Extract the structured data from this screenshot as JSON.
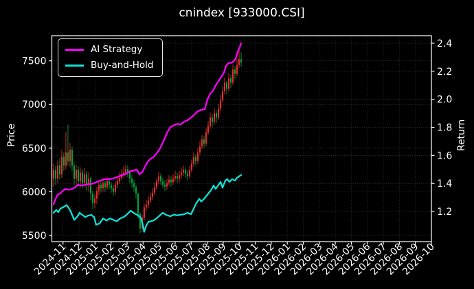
{
  "title": "cnindex [933000.CSI]",
  "axes": {
    "price_label": "Price",
    "return_label": "Return"
  },
  "legend": {
    "items": [
      {
        "label": "AI Strategy",
        "color": "#ff00ff"
      },
      {
        "label": "Buy-and-Hold",
        "color": "#0de2d8"
      }
    ]
  },
  "chart_data": {
    "type": "candlestick+line",
    "title": "cnindex [933000.CSI]",
    "grid": true,
    "legend_position": "upper-left",
    "colors": {
      "up": "#ea2c2c",
      "down": "#00a43c",
      "background": "#000000",
      "grid": "#3a3a3a",
      "text": "#ffffff",
      "spine": "#ffffff"
    },
    "x_axis": {
      "unit": "months since 2024-11-01",
      "lim": [
        -0.695,
        23.0
      ],
      "tick_labels": [
        "2024-11",
        "2024-12",
        "2025-01",
        "2025-02",
        "2025-03",
        "2025-04",
        "2025-05",
        "2025-06",
        "2025-07",
        "2025-08",
        "2025-09",
        "2025-10",
        "2025-11",
        "2025-12",
        "2026-01",
        "2026-02",
        "2026-03",
        "2026-04",
        "2026-05",
        "2026-06",
        "2026-07",
        "2026-08",
        "2026-09",
        "2026-10"
      ]
    },
    "price_axis": {
      "label": "Price",
      "ticks": [
        5500,
        6000,
        6500,
        7000,
        7500
      ],
      "lim": [
        5429,
        7788
      ]
    },
    "return_axis": {
      "label": "Return",
      "ticks": [
        1.2,
        1.4,
        1.6,
        1.8,
        2.0,
        2.2,
        2.4
      ],
      "lim": [
        0.9845,
        2.4539
      ]
    },
    "candles": {
      "t_start": -0.59,
      "t_step": 0.1287,
      "format": "[open,high,low,close]",
      "ohlc": [
        [
          6150,
          6320,
          6060,
          6250
        ],
        [
          6250,
          6300,
          6080,
          6150
        ],
        [
          6150,
          6360,
          6100,
          6300
        ],
        [
          6300,
          6380,
          6140,
          6200
        ],
        [
          6200,
          6480,
          6160,
          6400
        ],
        [
          6400,
          6450,
          6240,
          6300
        ],
        [
          6300,
          6690,
          6260,
          6450
        ],
        [
          6450,
          6770,
          6300,
          6350
        ],
        [
          6350,
          6560,
          6280,
          6480
        ],
        [
          6480,
          6520,
          6240,
          6300
        ],
        [
          6300,
          6340,
          6080,
          6150
        ],
        [
          6150,
          6310,
          6090,
          6250
        ],
        [
          6250,
          6290,
          6060,
          6120
        ],
        [
          6120,
          6280,
          6050,
          6220
        ],
        [
          6220,
          6260,
          6040,
          6100
        ],
        [
          6100,
          6270,
          6050,
          6200
        ],
        [
          6200,
          6240,
          6010,
          6080
        ],
        [
          6080,
          6220,
          6000,
          6150
        ],
        [
          6150,
          6170,
          5900,
          5980
        ],
        [
          5980,
          6010,
          5800,
          5870
        ],
        [
          5870,
          5970,
          5810,
          5920
        ],
        [
          5920,
          6060,
          5860,
          6010
        ],
        [
          6010,
          6130,
          5960,
          6080
        ],
        [
          6080,
          6120,
          5990,
          6040
        ],
        [
          6040,
          6150,
          6000,
          6100
        ],
        [
          6100,
          6130,
          6000,
          6050
        ],
        [
          6050,
          6170,
          6020,
          6120
        ],
        [
          6120,
          6160,
          6030,
          6080
        ],
        [
          6080,
          6110,
          5990,
          6040
        ],
        [
          6040,
          6080,
          5950,
          6000
        ],
        [
          6000,
          6120,
          5970,
          6080
        ],
        [
          6080,
          6180,
          6040,
          6120
        ],
        [
          6120,
          6220,
          6090,
          6160
        ],
        [
          6160,
          6260,
          6130,
          6200
        ],
        [
          6200,
          6290,
          6160,
          6220
        ],
        [
          6220,
          6310,
          6180,
          6260
        ],
        [
          6260,
          6300,
          6170,
          6220
        ],
        [
          6220,
          6250,
          6100,
          6150
        ],
        [
          6150,
          6190,
          6050,
          6100
        ],
        [
          6100,
          6140,
          6000,
          6050
        ],
        [
          6050,
          6080,
          5920,
          5980
        ],
        [
          5980,
          5990,
          5690,
          5750
        ],
        [
          5750,
          5760,
          5520,
          5580
        ],
        [
          5580,
          5740,
          5540,
          5700
        ],
        [
          5700,
          5860,
          5670,
          5820
        ],
        [
          5820,
          5910,
          5780,
          5850
        ],
        [
          5850,
          5950,
          5810,
          5900
        ],
        [
          5900,
          5990,
          5870,
          5940
        ],
        [
          5940,
          6040,
          5900,
          5990
        ],
        [
          5990,
          6100,
          5960,
          6050
        ],
        [
          6050,
          6160,
          6020,
          6120
        ],
        [
          6120,
          6230,
          6090,
          6180
        ],
        [
          6180,
          6210,
          6080,
          6120
        ],
        [
          6120,
          6160,
          6040,
          6080
        ],
        [
          6080,
          6130,
          6010,
          6060
        ],
        [
          6060,
          6150,
          6020,
          6100
        ],
        [
          6100,
          6190,
          6070,
          6140
        ],
        [
          6140,
          6180,
          6060,
          6110
        ],
        [
          6110,
          6200,
          6080,
          6150
        ],
        [
          6150,
          6240,
          6120,
          6180
        ],
        [
          6180,
          6220,
          6100,
          6150
        ],
        [
          6150,
          6240,
          6110,
          6190
        ],
        [
          6190,
          6280,
          6150,
          6220
        ],
        [
          6220,
          6300,
          6180,
          6250
        ],
        [
          6250,
          6280,
          6160,
          6210
        ],
        [
          6210,
          6250,
          6130,
          6180
        ],
        [
          6180,
          6300,
          6150,
          6250
        ],
        [
          6250,
          6370,
          6220,
          6320
        ],
        [
          6320,
          6450,
          6290,
          6400
        ],
        [
          6400,
          6430,
          6300,
          6350
        ],
        [
          6350,
          6500,
          6320,
          6450
        ],
        [
          6450,
          6580,
          6420,
          6520
        ],
        [
          6520,
          6650,
          6490,
          6600
        ],
        [
          6600,
          6640,
          6500,
          6550
        ],
        [
          6550,
          6730,
          6520,
          6680
        ],
        [
          6680,
          6810,
          6650,
          6750
        ],
        [
          6750,
          6910,
          6720,
          6850
        ],
        [
          6850,
          6890,
          6740,
          6800
        ],
        [
          6800,
          6960,
          6770,
          6900
        ],
        [
          6900,
          6930,
          6790,
          6850
        ],
        [
          6850,
          7010,
          6820,
          6950
        ],
        [
          6950,
          7110,
          6920,
          7050
        ],
        [
          7050,
          7210,
          7020,
          7150
        ],
        [
          7150,
          7310,
          7120,
          7250
        ],
        [
          7250,
          7270,
          7120,
          7180
        ],
        [
          7180,
          7360,
          7150,
          7300
        ],
        [
          7300,
          7340,
          7190,
          7250
        ],
        [
          7250,
          7460,
          7220,
          7400
        ],
        [
          7400,
          7440,
          7290,
          7350
        ],
        [
          7350,
          7520,
          7320,
          7450
        ],
        [
          7450,
          7640,
          7420,
          7520
        ],
        [
          7520,
          7600,
          7430,
          7480
        ]
      ]
    },
    "series": [
      {
        "name": "AI Strategy",
        "axis": "return",
        "color": "#ff00ff",
        "points": [
          [
            -0.59,
            1.25
          ],
          [
            -0.46,
            1.29
          ],
          [
            -0.33,
            1.32
          ],
          [
            -0.16,
            1.33
          ],
          [
            -0.03,
            1.345
          ],
          [
            0.14,
            1.36
          ],
          [
            0.36,
            1.355
          ],
          [
            0.57,
            1.36
          ],
          [
            0.78,
            1.375
          ],
          [
            0.91,
            1.39
          ],
          [
            1.13,
            1.385
          ],
          [
            1.39,
            1.39
          ],
          [
            1.64,
            1.395
          ],
          [
            1.9,
            1.4
          ],
          [
            2.11,
            1.41
          ],
          [
            2.33,
            1.42
          ],
          [
            2.59,
            1.43
          ],
          [
            2.93,
            1.43
          ],
          [
            3.27,
            1.44
          ],
          [
            3.49,
            1.45
          ],
          [
            3.7,
            1.46
          ],
          [
            3.96,
            1.47
          ],
          [
            4.17,
            1.485
          ],
          [
            4.39,
            1.49
          ],
          [
            4.6,
            1.5
          ],
          [
            4.77,
            1.465
          ],
          [
            4.95,
            1.48
          ],
          [
            5.12,
            1.52
          ],
          [
            5.29,
            1.555
          ],
          [
            5.46,
            1.575
          ],
          [
            5.67,
            1.59
          ],
          [
            5.85,
            1.615
          ],
          [
            6.06,
            1.65
          ],
          [
            6.27,
            1.7
          ],
          [
            6.49,
            1.76
          ],
          [
            6.7,
            1.8
          ],
          [
            6.92,
            1.815
          ],
          [
            7.13,
            1.825
          ],
          [
            7.35,
            1.82
          ],
          [
            7.56,
            1.84
          ],
          [
            7.77,
            1.85
          ],
          [
            7.99,
            1.87
          ],
          [
            8.2,
            1.89
          ],
          [
            8.42,
            1.915
          ],
          [
            8.63,
            1.925
          ],
          [
            8.85,
            1.93
          ],
          [
            9.02,
            2.0
          ],
          [
            9.19,
            2.04
          ],
          [
            9.36,
            2.06
          ],
          [
            9.53,
            2.1
          ],
          [
            9.71,
            2.13
          ],
          [
            9.88,
            2.16
          ],
          [
            10.05,
            2.19
          ],
          [
            10.18,
            2.24
          ],
          [
            10.35,
            2.26
          ],
          [
            10.52,
            2.26
          ],
          [
            10.65,
            2.27
          ],
          [
            10.78,
            2.29
          ],
          [
            10.91,
            2.34
          ],
          [
            11.03,
            2.37
          ],
          [
            11.12,
            2.4
          ]
        ]
      },
      {
        "name": "Buy-and-Hold",
        "axis": "return",
        "color": "#0de2d8",
        "points": [
          [
            -0.59,
            1.19
          ],
          [
            -0.42,
            1.21
          ],
          [
            -0.29,
            1.195
          ],
          [
            -0.16,
            1.22
          ],
          [
            0.01,
            1.23
          ],
          [
            0.23,
            1.245
          ],
          [
            0.36,
            1.225
          ],
          [
            0.48,
            1.2
          ],
          [
            0.7,
            1.14
          ],
          [
            0.87,
            1.16
          ],
          [
            1.04,
            1.19
          ],
          [
            1.21,
            1.175
          ],
          [
            1.39,
            1.16
          ],
          [
            1.56,
            1.17
          ],
          [
            1.77,
            1.175
          ],
          [
            1.94,
            1.16
          ],
          [
            2.07,
            1.105
          ],
          [
            2.29,
            1.115
          ],
          [
            2.5,
            1.15
          ],
          [
            2.72,
            1.135
          ],
          [
            2.93,
            1.15
          ],
          [
            3.14,
            1.14
          ],
          [
            3.36,
            1.13
          ],
          [
            3.57,
            1.15
          ],
          [
            3.79,
            1.16
          ],
          [
            4.0,
            1.18
          ],
          [
            4.22,
            1.205
          ],
          [
            4.47,
            1.185
          ],
          [
            4.65,
            1.175
          ],
          [
            4.86,
            1.155
          ],
          [
            4.99,
            1.1
          ],
          [
            5.07,
            1.055
          ],
          [
            5.2,
            1.1
          ],
          [
            5.33,
            1.125
          ],
          [
            5.5,
            1.13
          ],
          [
            5.72,
            1.14
          ],
          [
            5.93,
            1.16
          ],
          [
            6.23,
            1.19
          ],
          [
            6.45,
            1.175
          ],
          [
            6.7,
            1.165
          ],
          [
            6.92,
            1.177
          ],
          [
            7.13,
            1.172
          ],
          [
            7.35,
            1.177
          ],
          [
            7.56,
            1.18
          ],
          [
            7.77,
            1.19
          ],
          [
            7.99,
            1.18
          ],
          [
            8.16,
            1.22
          ],
          [
            8.33,
            1.26
          ],
          [
            8.51,
            1.29
          ],
          [
            8.63,
            1.27
          ],
          [
            8.81,
            1.29
          ],
          [
            9.02,
            1.32
          ],
          [
            9.23,
            1.35
          ],
          [
            9.41,
            1.385
          ],
          [
            9.53,
            1.36
          ],
          [
            9.71,
            1.39
          ],
          [
            9.84,
            1.41
          ],
          [
            9.96,
            1.37
          ],
          [
            10.14,
            1.42
          ],
          [
            10.26,
            1.43
          ],
          [
            10.39,
            1.41
          ],
          [
            10.56,
            1.43
          ],
          [
            10.74,
            1.42
          ],
          [
            10.86,
            1.44
          ],
          [
            10.99,
            1.45
          ],
          [
            11.12,
            1.46
          ]
        ]
      }
    ]
  }
}
